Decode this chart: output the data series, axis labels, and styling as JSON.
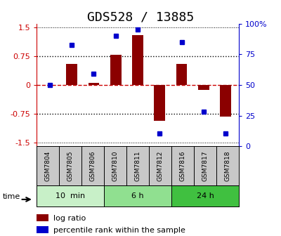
{
  "title": "GDS528 / 13885",
  "samples": [
    "GSM7804",
    "GSM7805",
    "GSM7806",
    "GSM7810",
    "GSM7811",
    "GSM7812",
    "GSM7816",
    "GSM7817",
    "GSM7818"
  ],
  "log_ratio": [
    0.0,
    0.55,
    0.05,
    0.78,
    1.3,
    -0.93,
    0.55,
    -0.12,
    -0.82
  ],
  "percentile": [
    50,
    85,
    60,
    93,
    98,
    8,
    87,
    27,
    8
  ],
  "groups": [
    {
      "label": "10  min",
      "start": 0,
      "end": 3,
      "color": "#c8f0c8"
    },
    {
      "label": "6 h",
      "start": 3,
      "end": 6,
      "color": "#90e090"
    },
    {
      "label": "24 h",
      "start": 6,
      "end": 9,
      "color": "#40c040"
    }
  ],
  "ylim_left": [
    -1.6,
    1.6
  ],
  "yticks_left": [
    -1.5,
    -0.75,
    0,
    0.75,
    1.5
  ],
  "ylim_right": [
    0,
    100
  ],
  "yticks_right": [
    0,
    25,
    50,
    75,
    100
  ],
  "bar_color": "#8b0000",
  "dot_color": "#0000cc",
  "hline_color": "#cc0000",
  "dotted_color": "#000000",
  "background_color": "#ffffff",
  "legend_bar_label": "log ratio",
  "legend_dot_label": "percentile rank within the sample",
  "time_label": "time",
  "title_fontsize": 13,
  "tick_label_fontsize": 8,
  "bar_width": 0.5,
  "sample_bg_color": "#c8c8c8"
}
